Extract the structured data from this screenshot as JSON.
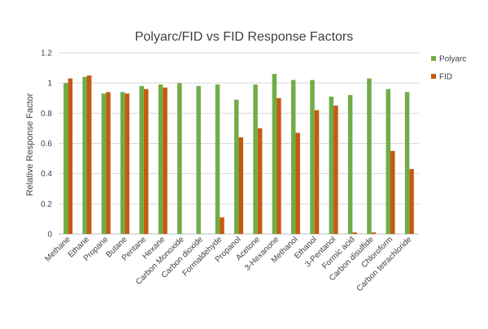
{
  "chart_data": {
    "type": "bar",
    "title": "Polyarc/FID vs FID Response Factors",
    "xlabel": "",
    "ylabel": "Relative Response Factor",
    "ylim": [
      0,
      1.2
    ],
    "yticks": [
      "0",
      "0.2",
      "0.4",
      "0.6",
      "0.8",
      "1",
      "1.2"
    ],
    "grid": true,
    "legend_position": "right",
    "categories": [
      "Methane",
      "Ethane",
      "Propane",
      "Butane",
      "Pentane",
      "Hexane",
      "Carbon Monoxide",
      "Carbon dioxide",
      "Formaldehyde",
      "Propanol",
      "Acetone",
      "3-Hexanone",
      "Methanol",
      "Ethanol",
      "3-Pentanol",
      "Formic acid",
      "Carbon disulfide",
      "Chloroform",
      "Carbon tetrachloride"
    ],
    "series": [
      {
        "name": "Polyarc",
        "color": "#70ad47",
        "values": [
          1.0,
          1.04,
          0.93,
          0.94,
          0.98,
          0.99,
          1.0,
          0.98,
          0.99,
          0.89,
          0.99,
          1.06,
          1.02,
          1.02,
          0.91,
          0.92,
          1.03,
          0.96,
          0.94
        ]
      },
      {
        "name": "FID",
        "color": "#c55a11",
        "values": [
          1.03,
          1.05,
          0.94,
          0.93,
          0.96,
          0.97,
          0,
          0,
          0.11,
          0.64,
          0.7,
          0.9,
          0.67,
          0.82,
          0.85,
          0.01,
          0.01,
          0.55,
          0.43
        ]
      }
    ]
  }
}
